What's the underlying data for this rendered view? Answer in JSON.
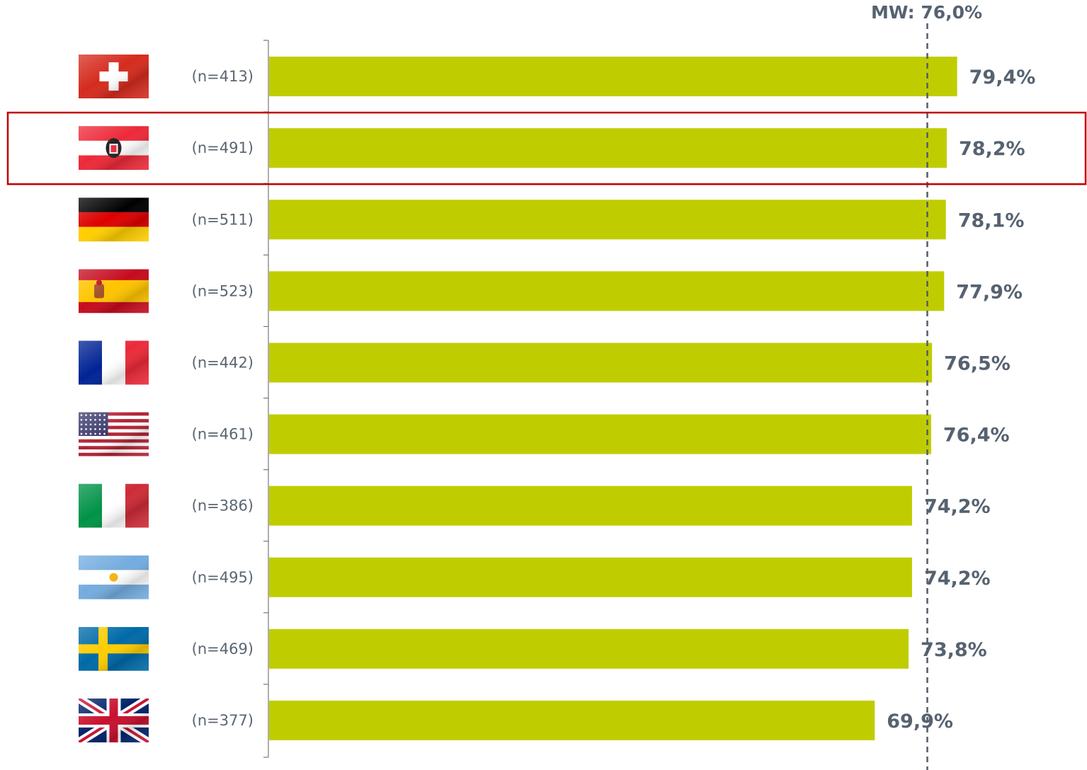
{
  "chart_data": {
    "type": "bar",
    "orientation": "horizontal",
    "categories": [
      "Switzerland",
      "Austria",
      "Germany",
      "Spain",
      "France",
      "USA",
      "Italy",
      "Argentina",
      "Sweden",
      "United Kingdom"
    ],
    "sample_sizes": [
      "(n=413)",
      "(n=491)",
      "(n=511)",
      "(n=523)",
      "(n=442)",
      "(n=461)",
      "(n=386)",
      "(n=495)",
      "(n=469)",
      "(n=377)"
    ],
    "values": [
      79.4,
      78.2,
      78.1,
      77.9,
      76.5,
      76.4,
      74.2,
      74.2,
      73.8,
      69.9
    ],
    "value_labels": [
      "79,4%",
      "78,2%",
      "78,1%",
      "77,9%",
      "76,5%",
      "76,4%",
      "74,2%",
      "74,2%",
      "73,8%",
      "69,9%"
    ],
    "mean": {
      "value": 76.0,
      "label": "MW: 76,0%"
    },
    "highlighted_category": "Austria",
    "xlim": [
      0,
      100
    ],
    "grid": false,
    "legend": "none",
    "title": "",
    "xlabel": "",
    "ylabel": ""
  },
  "colors": {
    "bar": "#bfcd00",
    "value_text": "#566270",
    "n_text": "#5b6672",
    "mean_line": "#555d66",
    "highlight_box": "#c00000",
    "axis": "#777777"
  },
  "flags": [
    {
      "name": "swiss-flag-icon"
    },
    {
      "name": "austria-flag-icon"
    },
    {
      "name": "germany-flag-icon"
    },
    {
      "name": "spain-flag-icon"
    },
    {
      "name": "france-flag-icon"
    },
    {
      "name": "usa-flag-icon"
    },
    {
      "name": "italy-flag-icon"
    },
    {
      "name": "argentina-flag-icon"
    },
    {
      "name": "sweden-flag-icon"
    },
    {
      "name": "uk-flag-icon"
    }
  ]
}
